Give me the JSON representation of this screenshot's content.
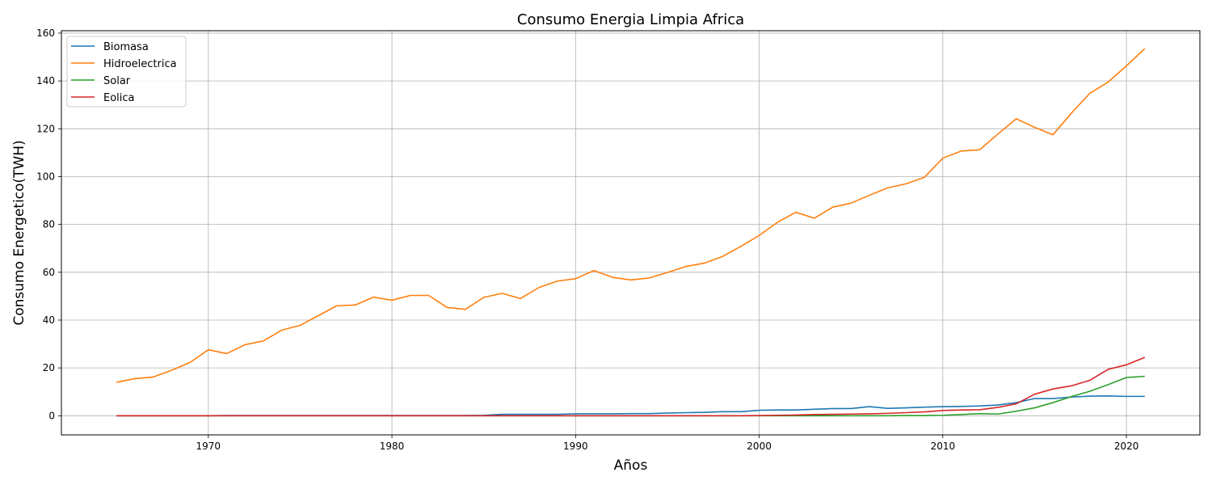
{
  "chart_data": {
    "type": "line",
    "title": "Consumo  Energia Limpia Africa",
    "xlabel": "Años",
    "ylabel": "Consumo Energetico(TWH)",
    "xlim": [
      1962,
      2024
    ],
    "ylim": [
      -8,
      161
    ],
    "xticks": [
      1970,
      1980,
      1990,
      2000,
      2010,
      2020
    ],
    "yticks": [
      0,
      20,
      40,
      60,
      80,
      100,
      120,
      140,
      160
    ],
    "grid": true,
    "legend_position": "top-left",
    "x": [
      1965,
      1966,
      1967,
      1968,
      1969,
      1970,
      1971,
      1972,
      1973,
      1974,
      1975,
      1976,
      1977,
      1978,
      1979,
      1980,
      1981,
      1982,
      1983,
      1984,
      1985,
      1986,
      1987,
      1988,
      1989,
      1990,
      1991,
      1992,
      1993,
      1994,
      1995,
      1996,
      1997,
      1998,
      1999,
      2000,
      2001,
      2002,
      2003,
      2004,
      2005,
      2006,
      2007,
      2008,
      2009,
      2010,
      2011,
      2012,
      2013,
      2014,
      2015,
      2016,
      2017,
      2018,
      2019,
      2020,
      2021
    ],
    "series": [
      {
        "name": "Biomasa",
        "color": "#1f77b4",
        "values": [
          0,
          0,
          0,
          0,
          0,
          0,
          0.1,
          0.1,
          0.1,
          0.1,
          0.1,
          0.1,
          0.1,
          0.1,
          0.1,
          0.1,
          0.1,
          0.1,
          0.1,
          0.1,
          0.2,
          0.6,
          0.6,
          0.6,
          0.6,
          0.8,
          0.8,
          0.8,
          0.9,
          0.9,
          1.1,
          1.3,
          1.4,
          1.7,
          1.7,
          2.3,
          2.4,
          2.4,
          2.7,
          3.0,
          3.0,
          3.8,
          3.1,
          3.3,
          3.6,
          3.8,
          3.9,
          4.1,
          4.5,
          5.5,
          7.2,
          7.2,
          7.8,
          8.2,
          8.3,
          8.1,
          8.1
        ]
      },
      {
        "name": "Hidroelectrica",
        "color": "#ff7f0e",
        "values": [
          14.0,
          15.5,
          16.2,
          19.0,
          22.3,
          27.6,
          26.0,
          29.7,
          31.3,
          35.8,
          37.8,
          41.9,
          46.0,
          46.3,
          49.6,
          48.3,
          50.3,
          50.3,
          45.3,
          44.5,
          49.5,
          51.2,
          49.0,
          53.6,
          56.3,
          57.3,
          60.7,
          57.9,
          56.8,
          57.6,
          59.9,
          62.4,
          63.8,
          66.6,
          70.8,
          75.4,
          80.9,
          85.1,
          82.6,
          87.2,
          88.9,
          92.2,
          95.3,
          97.0,
          99.7,
          107.7,
          110.7,
          111.2,
          117.8,
          124.2,
          120.6,
          117.5,
          126.5,
          134.8,
          139.5,
          146.3,
          153.5
        ]
      },
      {
        "name": "Solar",
        "color": "#2ca02c",
        "values": [
          0,
          0,
          0,
          0,
          0,
          0,
          0,
          0,
          0,
          0,
          0,
          0,
          0,
          0,
          0,
          0,
          0,
          0,
          0,
          0,
          0,
          0,
          0,
          0,
          0,
          0,
          0,
          0,
          0,
          0,
          0,
          0,
          0,
          0,
          0,
          0,
          0,
          0,
          0,
          0,
          0,
          0,
          0,
          0.1,
          0.1,
          0.2,
          0.5,
          0.9,
          0.7,
          1.9,
          3.3,
          5.5,
          8.0,
          10.2,
          13.0,
          16.0,
          16.5
        ]
      },
      {
        "name": "Eolica",
        "color": "#d62728",
        "values": [
          0,
          0,
          0,
          0,
          0,
          0,
          0,
          0,
          0,
          0,
          0,
          0,
          0,
          0,
          0,
          0,
          0,
          0,
          0,
          0,
          0,
          0,
          0,
          0,
          0,
          0,
          0,
          0,
          0,
          0,
          0,
          0,
          0,
          0,
          0,
          0.1,
          0.2,
          0.3,
          0.5,
          0.6,
          0.7,
          0.8,
          1.0,
          1.3,
          1.6,
          2.2,
          2.4,
          2.5,
          3.5,
          5.0,
          9.0,
          11.2,
          12.5,
          14.8,
          19.4,
          21.3,
          24.4
        ]
      }
    ]
  }
}
